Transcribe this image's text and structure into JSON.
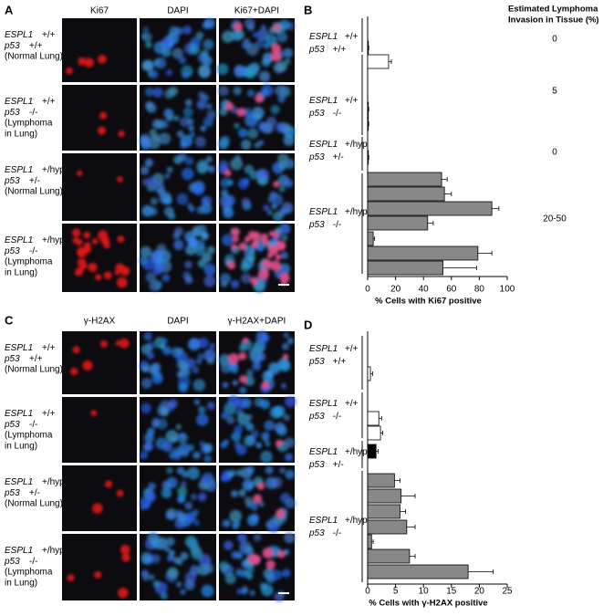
{
  "panels": [
    {
      "letter": "A",
      "columns": [
        "Ki67",
        "DAPI",
        "Ki67+DAPI"
      ],
      "rows": [
        [
          [
            "ESPL1",
            "+/+"
          ],
          [
            "p53",
            "+/+"
          ],
          "(Normal Lung)"
        ],
        [
          [
            "ESPL1",
            "+/+"
          ],
          [
            "p53",
            "-/-"
          ],
          "(Lymphoma",
          "in Lung)"
        ],
        [
          [
            "ESPL1",
            "+/hyp"
          ],
          [
            "p53",
            "+/-"
          ],
          "(Normal Lung)"
        ],
        [
          [
            "ESPL1",
            "+/hyp"
          ],
          [
            "p53",
            "-/-"
          ],
          "(Lymphoma",
          "in Lung)"
        ]
      ]
    },
    {
      "letter": "C",
      "columns": [
        "γ-H2AX",
        "DAPI",
        "γ-H2AX+DAPI"
      ],
      "rows": [
        [
          [
            "ESPL1",
            "+/+"
          ],
          [
            "p53",
            "+/+"
          ],
          "(Normal Lung)"
        ],
        [
          [
            "ESPL1",
            "+/+"
          ],
          [
            "p53",
            "-/-"
          ],
          "(Lymphoma",
          "in Lung)"
        ],
        [
          [
            "ESPL1",
            "+/hyp"
          ],
          [
            "p53",
            "+/-"
          ],
          "(Normal Lung)"
        ],
        [
          [
            "ESPL1",
            "+/hyp"
          ],
          [
            "p53",
            "-/-"
          ],
          "(Lymphoma",
          "in Lung)"
        ]
      ]
    }
  ],
  "chart_data": [
    {
      "type": "bar",
      "orientation": "horizontal",
      "letter": "B",
      "xlabel": "% Cells with Ki67 positive",
      "xlim": [
        0,
        100
      ],
      "xticks": [
        0,
        20,
        40,
        60,
        80,
        100
      ],
      "groups": [
        {
          "label": [
            [
              "ESPL1",
              "+/+"
            ],
            [
              "p53",
              "+/+"
            ]
          ],
          "color": "#ffffff",
          "values": [
            0.5
          ],
          "errors": [
            0.3
          ]
        },
        {
          "label": [
            [
              "ESPL1",
              "+/+"
            ],
            [
              "p53",
              "-/-"
            ]
          ],
          "color": "#ffffff",
          "values": [
            15,
            0.5,
            0.5
          ],
          "errors": [
            2,
            0.3,
            0.3
          ]
        },
        {
          "label": [
            [
              "ESPL1",
              "+/hyp"
            ],
            [
              "p53",
              "+/-"
            ]
          ],
          "color": "#ffffff",
          "values": [
            0.5
          ],
          "errors": [
            0.3
          ]
        },
        {
          "label": [
            [
              "ESPL1",
              "+/hyp"
            ],
            [
              "p53",
              "-/-"
            ]
          ],
          "color": "#888888",
          "values": [
            53,
            55,
            89,
            43,
            4,
            79,
            54
          ],
          "errors": [
            4,
            5,
            5,
            4,
            1,
            10,
            24
          ]
        }
      ]
    },
    {
      "type": "bar",
      "orientation": "horizontal",
      "letter": "D",
      "xlabel": "% Cells with γ-H2AX positive",
      "xlim": [
        0,
        25
      ],
      "xticks": [
        0,
        5,
        10,
        15,
        20,
        25
      ],
      "groups": [
        {
          "label": [
            [
              "ESPL1",
              "+/+"
            ],
            [
              "p53",
              "+/+"
            ]
          ],
          "color": "#ffffff",
          "values": [
            0.5
          ],
          "errors": [
            0.4
          ]
        },
        {
          "label": [
            [
              "ESPL1",
              "+/+"
            ],
            [
              "p53",
              "-/-"
            ]
          ],
          "color": "#ffffff",
          "values": [
            2,
            2.3
          ],
          "errors": [
            0.5,
            0.4
          ]
        },
        {
          "label": [
            [
              "ESPL1",
              "+/hyp"
            ],
            [
              "p53",
              "+/-"
            ]
          ],
          "color": "#000000",
          "values": [
            1.5
          ],
          "errors": [
            0.4
          ]
        },
        {
          "label": [
            [
              "ESPL1",
              "+/hyp"
            ],
            [
              "p53",
              "-/-"
            ]
          ],
          "color": "#888888",
          "values": [
            4.8,
            6,
            5.8,
            7,
            0.7,
            7.5,
            18
          ],
          "errors": [
            1,
            2.5,
            1,
            1.5,
            0.3,
            1,
            4.5
          ]
        }
      ]
    }
  ],
  "invasion": {
    "title": [
      "Estimated Lymphoma",
      "Invasion in Tissue (%)"
    ],
    "values": [
      0,
      5,
      0,
      "20-50"
    ]
  }
}
